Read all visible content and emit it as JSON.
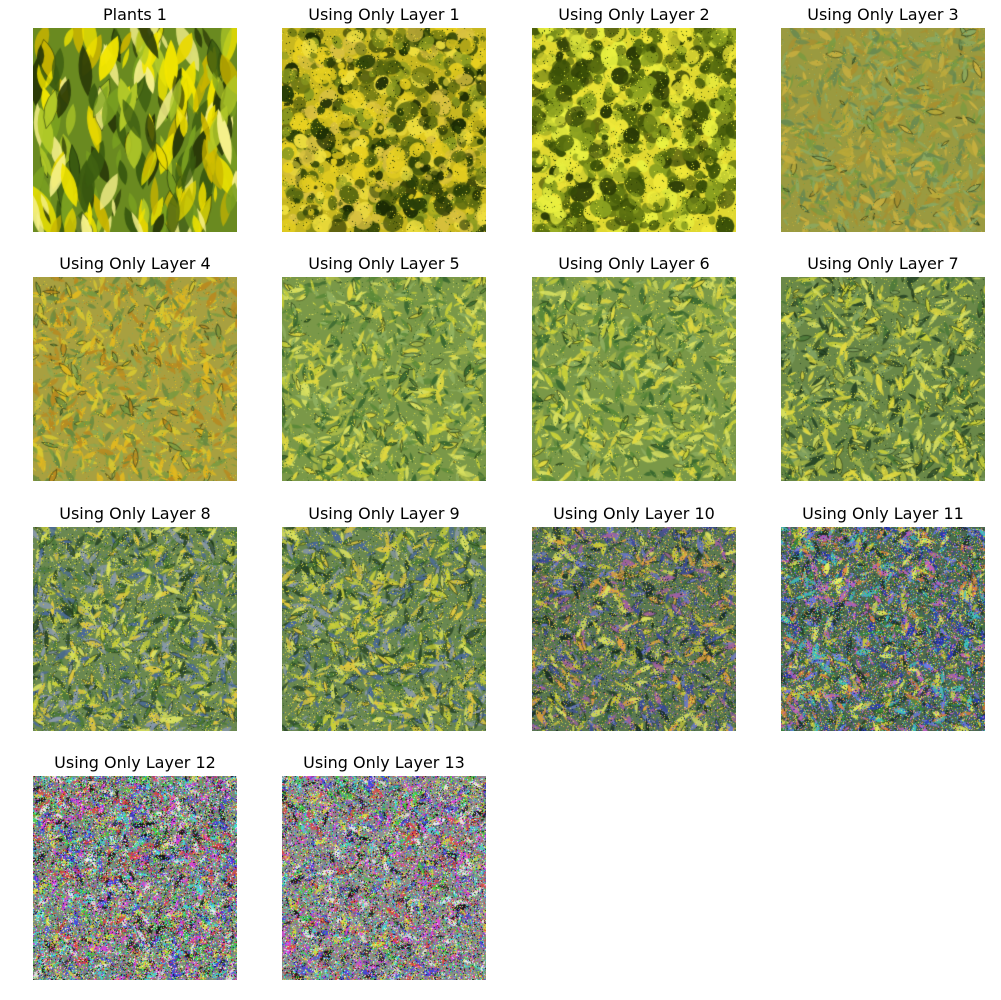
{
  "panels": [
    {
      "title": "Plants 1",
      "style": "original"
    },
    {
      "title": "Using Only Layer 1",
      "style": "blotchy"
    },
    {
      "title": "Using Only Layer 2",
      "style": "blotchy-bright"
    },
    {
      "title": "Using Only Layer 3",
      "style": "muted"
    },
    {
      "title": "Using Only Layer 4",
      "style": "muted-yellow"
    },
    {
      "title": "Using Only Layer 5",
      "style": "leafy"
    },
    {
      "title": "Using Only Layer 6",
      "style": "leafy"
    },
    {
      "title": "Using Only Layer 7",
      "style": "leafy-dark"
    },
    {
      "title": "Using Only Layer 8",
      "style": "leafy-noisy"
    },
    {
      "title": "Using Only Layer 9",
      "style": "leafy-noisy"
    },
    {
      "title": "Using Only Layer 10",
      "style": "noisy"
    },
    {
      "title": "Using Only Layer 11",
      "style": "noisy-strong"
    },
    {
      "title": "Using Only Layer 12",
      "style": "psychedelic"
    },
    {
      "title": "Using Only Layer 13",
      "style": "psychedelic-gray"
    }
  ]
}
